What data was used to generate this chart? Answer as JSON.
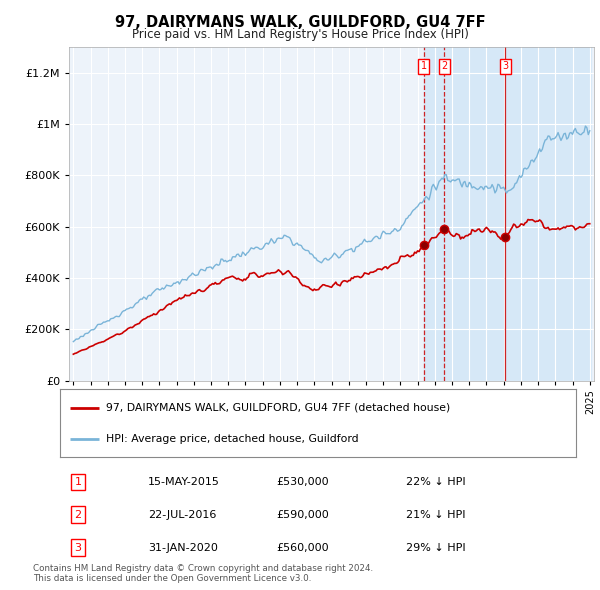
{
  "title": "97, DAIRYMANS WALK, GUILDFORD, GU4 7FF",
  "subtitle": "Price paid vs. HM Land Registry's House Price Index (HPI)",
  "ylim": [
    0,
    1300000
  ],
  "yticks": [
    0,
    200000,
    400000,
    600000,
    800000,
    1000000,
    1200000
  ],
  "ytick_labels": [
    "£0",
    "£200K",
    "£400K",
    "£600K",
    "£800K",
    "£1M",
    "£1.2M"
  ],
  "hpi_color": "#7ab4d8",
  "price_color": "#cc0000",
  "vline_color_dashed": "#cc0000",
  "vline_color_solid": "#cc0000",
  "shade_color": "#d6e8f7",
  "background_color": "#edf3fa",
  "sale_dates_str": [
    "2015-05-15",
    "2016-07-22",
    "2020-01-31"
  ],
  "sale_prices": [
    530000,
    590000,
    560000
  ],
  "sale_labels": [
    "1",
    "2",
    "3"
  ],
  "sale_line_styles": [
    "dashed",
    "dashed",
    "solid"
  ],
  "legend_label_price": "97, DAIRYMANS WALK, GUILDFORD, GU4 7FF (detached house)",
  "legend_label_hpi": "HPI: Average price, detached house, Guildford",
  "table_data": [
    [
      "1",
      "15-MAY-2015",
      "£530,000",
      "22% ↓ HPI"
    ],
    [
      "2",
      "22-JUL-2016",
      "£590,000",
      "21% ↓ HPI"
    ],
    [
      "3",
      "31-JAN-2020",
      "£560,000",
      "29% ↓ HPI"
    ]
  ],
  "footer": "Contains HM Land Registry data © Crown copyright and database right 2024.\nThis data is licensed under the Open Government Licence v3.0."
}
